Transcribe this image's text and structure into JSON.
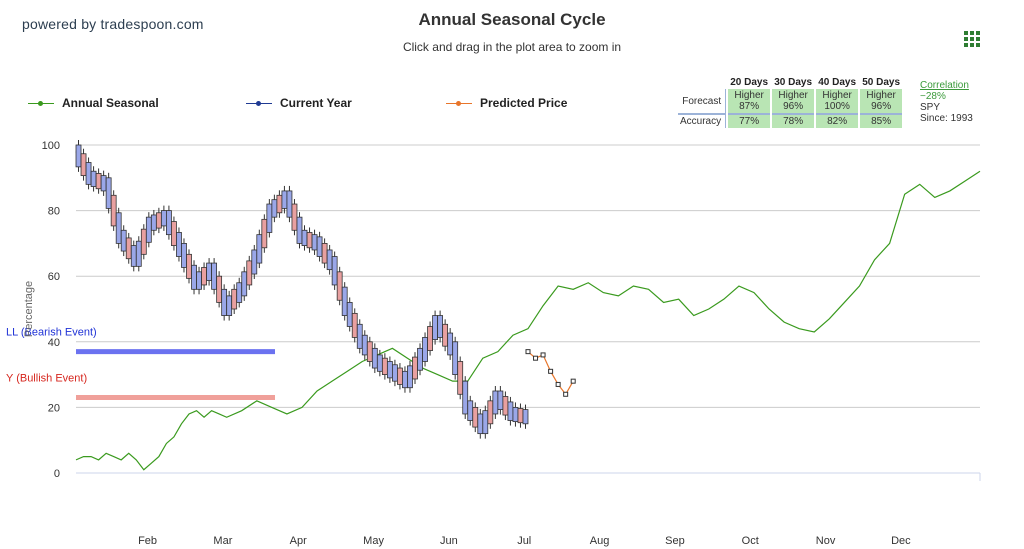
{
  "header": {
    "brand": "powered by tradespoon.com",
    "title": "Annual Seasonal Cycle",
    "subtitle": "Click and drag in the plot area to zoom in",
    "menu_icon": "grid-menu-icon"
  },
  "legend": [
    {
      "name": "Annual Seasonal",
      "color": "#3a9a1e"
    },
    {
      "name": "Current Year",
      "color": "#1f3a93"
    },
    {
      "name": "Predicted Price",
      "color": "#e8752a"
    }
  ],
  "forecast_table": {
    "columns": [
      "20 Days",
      "30 Days",
      "40 Days",
      "50 Days"
    ],
    "forecast_label": "Forecast",
    "accuracy_label": "Accuracy",
    "forecast_direction": [
      "Higher",
      "Higher",
      "Higher",
      "Higher"
    ],
    "forecast_pct": [
      "87%",
      "96%",
      "100%",
      "96%"
    ],
    "accuracy": [
      "77%",
      "78%",
      "82%",
      "85%"
    ]
  },
  "correlation": {
    "label": "Correlation",
    "value": "−28%",
    "symbol": "SPY",
    "since": "Since: 1993"
  },
  "chart_data": {
    "type": "line",
    "ylabel": "Percentage",
    "ylim": [
      0,
      100
    ],
    "yticks": [
      0,
      20,
      40,
      60,
      80,
      100
    ],
    "x_ticks": [
      "Feb",
      "Mar",
      "Apr",
      "May",
      "Jun",
      "Jul",
      "Aug",
      "Sep",
      "Oct",
      "Nov",
      "Dec"
    ],
    "bands": [
      {
        "label": "LL (Bearish Event)",
        "y": 37,
        "color": "#6b72f0",
        "text_color": "#2033d6"
      },
      {
        "label": "Y (Bullish Event)",
        "y": 23,
        "color": "#f0a09a",
        "text_color": "#d6261e"
      }
    ],
    "series": [
      {
        "name": "Annual Seasonal",
        "color": "#3a9a1e",
        "x": [
          0.0,
          0.1,
          0.2,
          0.3,
          0.4,
          0.5,
          0.6,
          0.7,
          0.8,
          0.9,
          1.0,
          1.1,
          1.2,
          1.3,
          1.4,
          1.5,
          1.6,
          1.7,
          1.8,
          1.9,
          2.0,
          2.2,
          2.4,
          2.6,
          2.8,
          3.0,
          3.2,
          3.4,
          3.6,
          3.8,
          4.0,
          4.2,
          4.4,
          4.6,
          4.8,
          5.0,
          5.2,
          5.4,
          5.6,
          5.8,
          6.0,
          6.2,
          6.4,
          6.6,
          6.8,
          7.0,
          7.2,
          7.4,
          7.6,
          7.8,
          8.0,
          8.2,
          8.4,
          8.6,
          8.8,
          9.0,
          9.2,
          9.4,
          9.6,
          9.8,
          10.0,
          10.2,
          10.4,
          10.6,
          10.8,
          11.0,
          11.2,
          11.4,
          11.6,
          11.8,
          12.0
        ],
        "y": [
          4,
          5,
          5,
          4,
          6,
          5,
          4,
          6,
          4,
          1,
          3,
          5,
          9,
          11,
          15,
          18,
          19,
          17,
          19,
          18,
          17,
          19,
          22,
          20,
          18,
          20,
          25,
          28,
          31,
          34,
          36,
          38,
          35,
          32,
          30,
          28,
          28,
          35,
          37,
          42,
          44,
          51,
          57,
          56,
          58,
          55,
          54,
          57,
          56,
          52,
          53,
          48,
          50,
          53,
          57,
          55,
          50,
          46,
          44,
          43,
          47,
          52,
          57,
          65,
          70,
          85,
          88,
          84,
          86,
          89,
          92
        ]
      },
      {
        "name": "Current Year",
        "color": "#1f3a93",
        "x": [
          0.0,
          0.2,
          0.4,
          0.6,
          0.8,
          1.0,
          1.2,
          1.4,
          1.6,
          1.8,
          2.0,
          2.2,
          2.4,
          2.6,
          2.8,
          3.0,
          3.2,
          3.4,
          3.6,
          3.8,
          4.0,
          4.2,
          4.4,
          4.6,
          4.8,
          5.0,
          5.2,
          5.4,
          5.6,
          5.8,
          6.0
        ],
        "y": [
          98,
          90,
          88,
          72,
          65,
          76,
          78,
          68,
          58,
          62,
          50,
          56,
          66,
          80,
          84,
          72,
          70,
          64,
          50,
          40,
          34,
          31,
          28,
          36,
          46,
          38,
          20,
          14,
          23,
          18,
          17
        ]
      },
      {
        "name": "Predicted Price",
        "color": "#e8752a",
        "x": [
          6.0,
          6.1,
          6.2,
          6.3,
          6.4,
          6.5,
          6.6
        ],
        "y": [
          37,
          35,
          36,
          31,
          27,
          24,
          28
        ]
      }
    ]
  }
}
